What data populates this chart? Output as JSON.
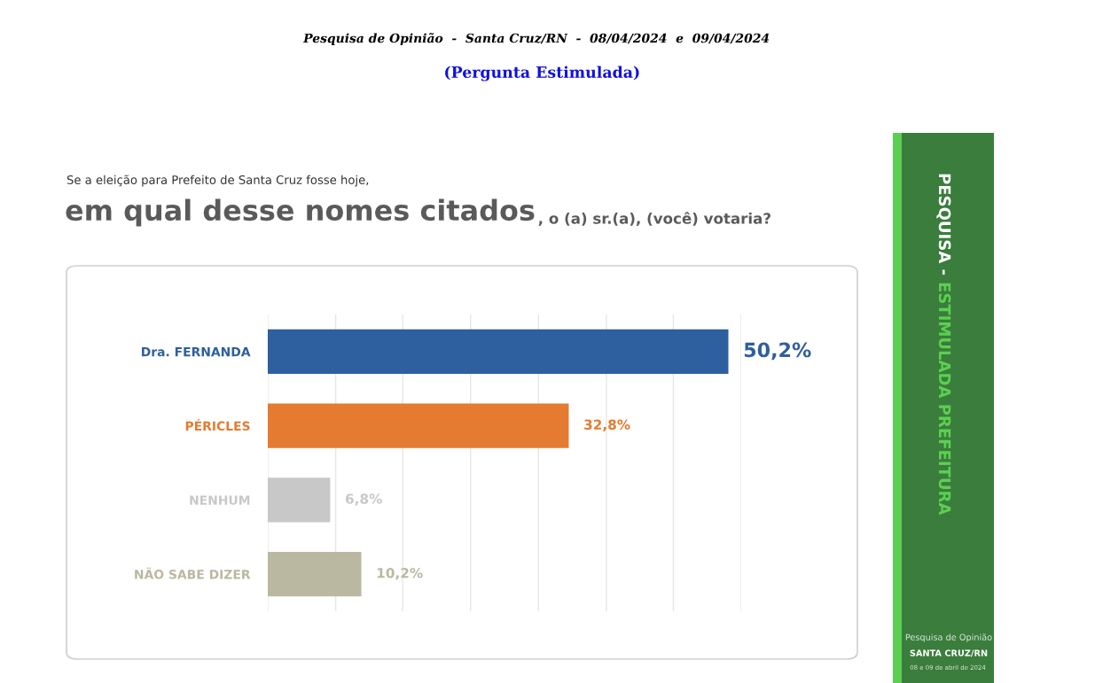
{
  "chart_data": {
    "type": "bar",
    "orientation": "horizontal",
    "title": "Pesquisa de Opinião  -  Santa Cruz/RN  -  08/04/2024  e  09/04/2024",
    "subtitle": "(Pergunta Estimulada)",
    "annotations": [
      "Se a eleição para Prefeito de Santa Cruz fosse hoje,",
      "em qual desse nomes citados",
      ", o (a) sr.(a), (você) votaria?",
      "PESQUISA -",
      "ESTIMULADA PREFEITURA",
      "Pesquisa de Opinião",
      "SANTA CRUZ/RN",
      "08 e 09 de abril de 2024"
    ],
    "categories": [
      "Dra. FERNANDA",
      "PÉRICLES",
      "NENHUM",
      "NÃO SABE DIZER"
    ],
    "values": [
      50.2,
      32.8,
      6.8,
      10.2
    ],
    "value_labels": [
      "50,2%",
      "32,8%",
      "6,8%",
      "10,2%"
    ],
    "colors": [
      "#2e5f9e",
      "#e47b30",
      "#c8c8c8",
      "#bab8a0"
    ],
    "xlim": [
      0,
      51.6
    ],
    "xticks": [
      {
        "value": 0,
        "label": null
      },
      {
        "value": 7.4,
        "label": null
      },
      {
        "value": 14.7,
        "label": null
      },
      {
        "value": 22.1,
        "label": null
      },
      {
        "value": 29.5,
        "label": null
      },
      {
        "value": 36.9,
        "label": null
      },
      {
        "value": 44.2,
        "label": null
      },
      {
        "value": 51.6,
        "label": null
      }
    ],
    "grid": "x",
    "tick_labels": "y"
  }
}
